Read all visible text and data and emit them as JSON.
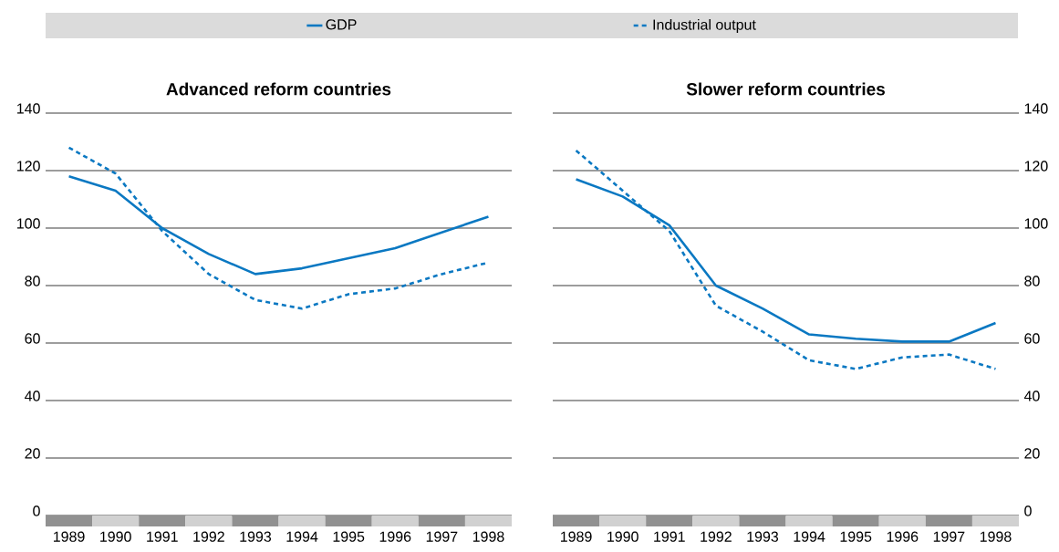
{
  "chart_data": [
    {
      "type": "line",
      "title": "Advanced reform countries",
      "categories": [
        "1989",
        "1990",
        "1991",
        "1992",
        "1993",
        "1994",
        "1995",
        "1996",
        "1997",
        "1998"
      ],
      "series": [
        {
          "name": "GDP",
          "color": "#0a78c2",
          "line_style": "solid",
          "values": [
            118,
            113,
            100,
            91,
            84,
            86,
            89.5,
            93,
            98.5,
            104
          ]
        },
        {
          "name": "Industrial output",
          "color": "#0a78c2",
          "line_style": "dashed",
          "values": [
            128,
            119,
            99,
            84,
            75,
            72,
            77,
            79,
            84,
            88
          ]
        }
      ],
      "ylim": [
        0,
        140
      ],
      "yticks": [
        0,
        20,
        40,
        60,
        80,
        100,
        120,
        140
      ],
      "grid": "y",
      "legend": "top"
    },
    {
      "type": "line",
      "title": "Slower reform countries",
      "categories": [
        "1989",
        "1990",
        "1991",
        "1992",
        "1993",
        "1994",
        "1995",
        "1996",
        "1997",
        "1998"
      ],
      "series": [
        {
          "color": "#0a78c2",
          "line_style": "solid",
          "values": [
            117,
            111,
            101,
            80,
            72,
            63,
            61.5,
            60.5,
            60.5,
            67
          ]
        },
        {
          "color": "#0a78c2",
          "line_style": "dashed",
          "values": [
            127,
            113,
            99,
            73,
            64,
            54,
            51,
            55,
            56,
            51
          ]
        }
      ],
      "ylim": [
        0,
        140
      ],
      "yticks": [
        0,
        20,
        40,
        60,
        80,
        100,
        120,
        140
      ],
      "grid": "y"
    }
  ]
}
